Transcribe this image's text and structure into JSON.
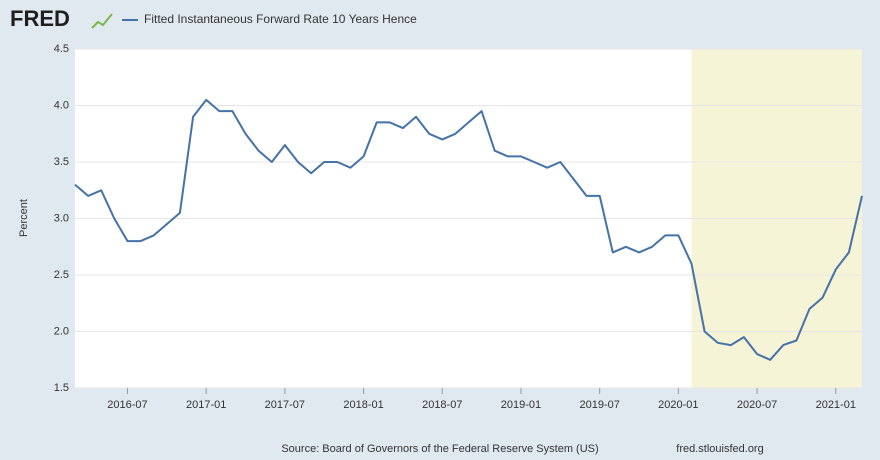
{
  "chart_data": {
    "type": "line",
    "logo": "FRED",
    "ylabel": "Percent",
    "source": "Source: Board of Governors of the Federal Reserve System (US)",
    "site": "fred.stlouisfed.org",
    "x": [
      "2016-03",
      "2016-04",
      "2016-05",
      "2016-06",
      "2016-07",
      "2016-08",
      "2016-09",
      "2016-10",
      "2016-11",
      "2016-12",
      "2017-01",
      "2017-02",
      "2017-03",
      "2017-04",
      "2017-05",
      "2017-06",
      "2017-07",
      "2017-08",
      "2017-09",
      "2017-10",
      "2017-11",
      "2017-12",
      "2018-01",
      "2018-02",
      "2018-03",
      "2018-04",
      "2018-05",
      "2018-06",
      "2018-07",
      "2018-08",
      "2018-09",
      "2018-10",
      "2018-11",
      "2018-12",
      "2019-01",
      "2019-02",
      "2019-03",
      "2019-04",
      "2019-05",
      "2019-06",
      "2019-07",
      "2019-08",
      "2019-09",
      "2019-10",
      "2019-11",
      "2019-12",
      "2020-01",
      "2020-02",
      "2020-03",
      "2020-04",
      "2020-05",
      "2020-06",
      "2020-07",
      "2020-08",
      "2020-09",
      "2020-10",
      "2020-11",
      "2020-12",
      "2021-01",
      "2021-02",
      "2021-03"
    ],
    "series": [
      {
        "name": "Fitted Instantaneous Forward Rate 10 Years Hence",
        "color": "#4572a7",
        "values": [
          3.3,
          3.2,
          3.25,
          3.0,
          2.8,
          2.8,
          2.85,
          2.95,
          3.05,
          3.9,
          4.05,
          3.95,
          3.95,
          3.75,
          3.6,
          3.5,
          3.65,
          3.5,
          3.4,
          3.5,
          3.5,
          3.45,
          3.55,
          3.85,
          3.85,
          3.8,
          3.9,
          3.75,
          3.7,
          3.75,
          3.85,
          3.95,
          3.6,
          3.55,
          3.55,
          3.5,
          3.45,
          3.5,
          3.35,
          3.2,
          3.2,
          2.7,
          2.75,
          2.7,
          2.75,
          2.85,
          2.85,
          2.6,
          2.0,
          1.9,
          1.88,
          1.95,
          1.8,
          1.75,
          1.88,
          1.92,
          2.2,
          2.3,
          2.55,
          2.7,
          3.2
        ]
      }
    ],
    "xlim": [
      "2016-03",
      "2021-03"
    ],
    "xticks": [
      "2016-07",
      "2017-01",
      "2017-07",
      "2018-01",
      "2018-07",
      "2019-01",
      "2019-07",
      "2020-01",
      "2020-07",
      "2021-01"
    ],
    "ylim": [
      1.5,
      4.5
    ],
    "yticks": [
      1.5,
      {
        "value": 2,
        "label": "2.0"
      },
      2.5,
      {
        "value": 3,
        "label": "3.0"
      },
      3.5,
      {
        "value": 4,
        "label": "4.0"
      },
      4.5
    ],
    "grid": true,
    "recession": [
      "2020-02",
      "2021-03"
    ]
  }
}
